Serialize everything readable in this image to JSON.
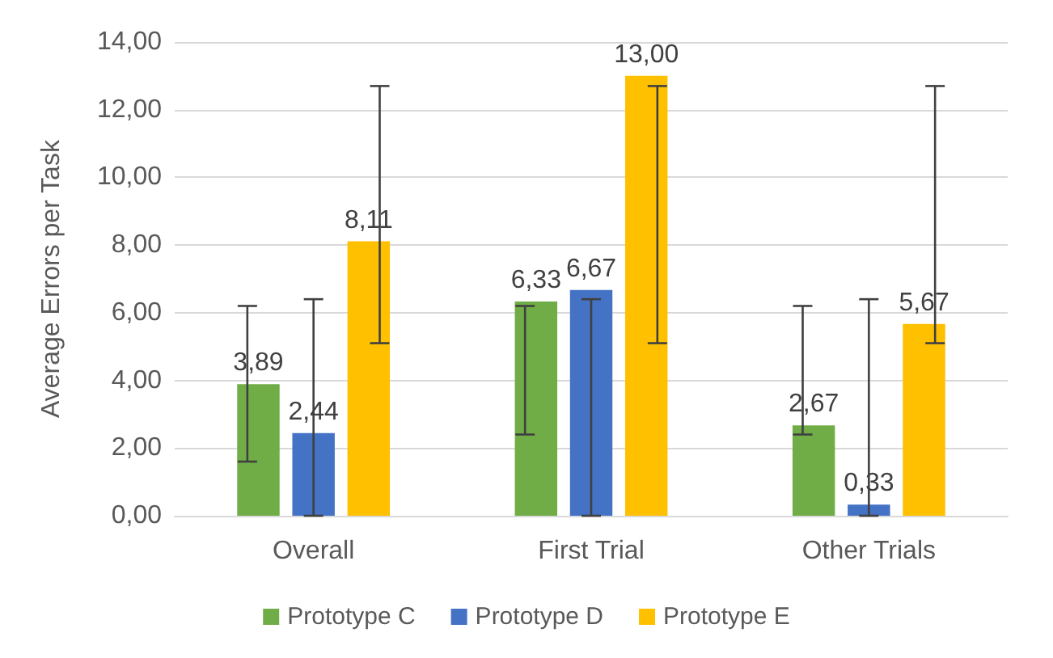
{
  "chart_data": {
    "type": "bar",
    "ylabel": "Average Errors per Task",
    "categories": [
      "Overall",
      "First Trial",
      "Other Trials"
    ],
    "series": [
      {
        "name": "Prototype C",
        "color": "#70ad47",
        "values": [
          3.89,
          6.33,
          2.67
        ],
        "value_labels": [
          "3,89",
          "6,33",
          "2,67"
        ],
        "errors": [
          [
            1.6,
            6.2
          ],
          [
            2.4,
            6.2
          ],
          [
            2.4,
            6.2
          ]
        ]
      },
      {
        "name": "Prototype D",
        "color": "#4472c4",
        "values": [
          2.44,
          6.67,
          0.33
        ],
        "value_labels": [
          "2,44",
          "6,67",
          "0,33"
        ],
        "errors": [
          [
            0,
            6.4
          ],
          [
            0,
            6.4
          ],
          [
            0,
            6.4
          ]
        ]
      },
      {
        "name": "Prototype E",
        "color": "#ffc000",
        "values": [
          8.11,
          13.0,
          5.67
        ],
        "value_labels": [
          "8,11",
          "13,00",
          "5,67"
        ],
        "errors": [
          [
            5.1,
            12.7
          ],
          [
            5.1,
            12.7
          ],
          [
            5.1,
            12.7
          ]
        ]
      }
    ],
    "ylim": [
      0,
      14
    ],
    "yticks": [
      {
        "value": 0,
        "label": "0,00"
      },
      {
        "value": 2,
        "label": "2,00"
      },
      {
        "value": 4,
        "label": "4,00"
      },
      {
        "value": 6,
        "label": "6,00"
      },
      {
        "value": 8,
        "label": "8,00"
      },
      {
        "value": 10,
        "label": "10,00"
      },
      {
        "value": 12,
        "label": "12,00"
      },
      {
        "value": 14,
        "label": "14,00"
      }
    ],
    "grid": "y",
    "legend": "bottom"
  }
}
